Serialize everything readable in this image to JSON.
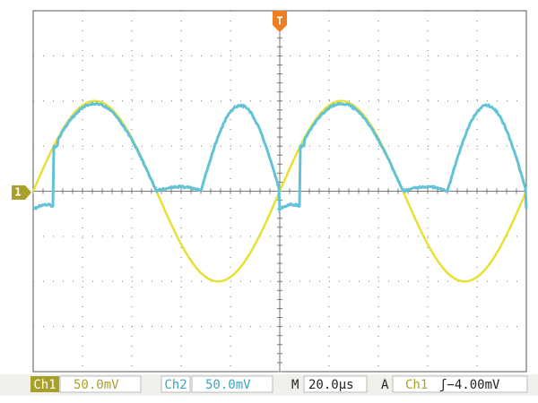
{
  "markers": {
    "channel1": "1",
    "trigger": "T"
  },
  "status_bar": {
    "ch1_label": "Ch1",
    "ch1_scale": "50.0mV",
    "ch2_label": "Ch2",
    "ch2_scale": "50.0mV",
    "timebase_label": "M",
    "timebase": "20.0µs",
    "trigger_label": "A",
    "trigger_source": "Ch1",
    "trigger_level": "ʃ−4.00mV"
  }
}
